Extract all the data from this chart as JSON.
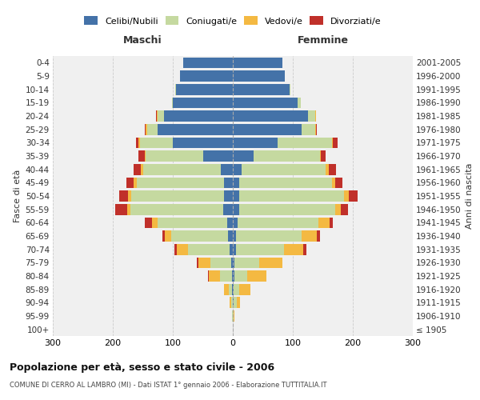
{
  "age_groups": [
    "100+",
    "95-99",
    "90-94",
    "85-89",
    "80-84",
    "75-79",
    "70-74",
    "65-69",
    "60-64",
    "55-59",
    "50-54",
    "45-49",
    "40-44",
    "35-39",
    "30-34",
    "25-29",
    "20-24",
    "15-19",
    "10-14",
    "5-9",
    "0-4"
  ],
  "birth_years": [
    "≤ 1905",
    "1906-1910",
    "1911-1915",
    "1916-1920",
    "1921-1925",
    "1926-1930",
    "1931-1935",
    "1936-1940",
    "1941-1945",
    "1946-1950",
    "1951-1955",
    "1956-1960",
    "1961-1965",
    "1966-1970",
    "1971-1975",
    "1976-1980",
    "1981-1985",
    "1986-1990",
    "1991-1995",
    "1996-2000",
    "2001-2005"
  ],
  "maschi": {
    "celibi": [
      0,
      0,
      0,
      1,
      2,
      3,
      5,
      8,
      10,
      16,
      15,
      15,
      20,
      50,
      100,
      125,
      115,
      100,
      95,
      88,
      83
    ],
    "coniugati": [
      0,
      1,
      3,
      6,
      20,
      35,
      70,
      95,
      115,
      155,
      155,
      145,
      130,
      95,
      55,
      18,
      10,
      2,
      1,
      0,
      0
    ],
    "vedovi": [
      0,
      0,
      2,
      8,
      18,
      20,
      18,
      10,
      10,
      5,
      5,
      5,
      3,
      2,
      2,
      2,
      2,
      0,
      0,
      0,
      0
    ],
    "divorziati": [
      0,
      0,
      0,
      0,
      2,
      2,
      5,
      5,
      12,
      20,
      15,
      12,
      12,
      10,
      5,
      2,
      1,
      0,
      0,
      0,
      0
    ]
  },
  "femmine": {
    "nubili": [
      0,
      0,
      1,
      1,
      2,
      2,
      5,
      5,
      8,
      10,
      10,
      10,
      15,
      35,
      75,
      115,
      125,
      108,
      95,
      87,
      82
    ],
    "coniugate": [
      0,
      1,
      5,
      10,
      22,
      42,
      80,
      110,
      135,
      160,
      175,
      155,
      140,
      110,
      90,
      22,
      12,
      5,
      1,
      0,
      0
    ],
    "vedove": [
      0,
      2,
      6,
      18,
      32,
      38,
      32,
      25,
      18,
      10,
      8,
      5,
      5,
      2,
      2,
      1,
      1,
      0,
      0,
      0,
      0
    ],
    "divorziate": [
      0,
      0,
      0,
      0,
      0,
      0,
      5,
      5,
      5,
      12,
      15,
      12,
      12,
      8,
      8,
      2,
      1,
      0,
      0,
      0,
      0
    ]
  },
  "colors": {
    "celibi": "#4472a8",
    "coniugati": "#c5d9a0",
    "vedovi": "#f4b942",
    "divorziati": "#c0302a"
  },
  "xlim": 300,
  "title": "Popolazione per età, sesso e stato civile - 2006",
  "subtitle": "COMUNE DI CERRO AL LAMBRO (MI) - Dati ISTAT 1° gennaio 2006 - Elaborazione TUTTITALIA.IT",
  "ylabel_left": "Fasce di età",
  "ylabel_right": "Anni di nascita",
  "legend_labels": [
    "Celibi/Nubili",
    "Coniugati/e",
    "Vedovi/e",
    "Divorziati/e"
  ],
  "bg_color": "#f0f0f0",
  "grid_color": "#cccccc"
}
